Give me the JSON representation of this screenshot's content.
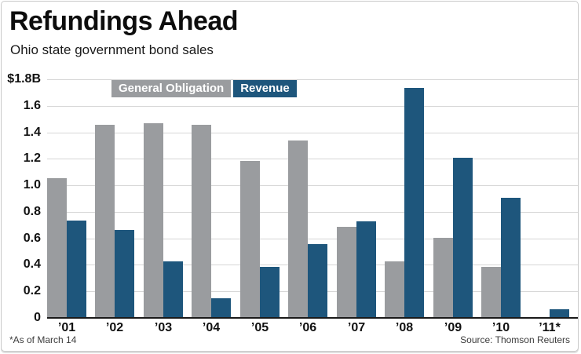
{
  "header": {
    "title": "Refundings Ahead",
    "subtitle": "Ohio state government bond sales"
  },
  "footer": {
    "footnote": "*As of March 14",
    "source": "Source: Thomson Reuters"
  },
  "chart_data": {
    "type": "bar",
    "title": "Refundings Ahead",
    "subtitle": "Ohio state government bond sales",
    "unit": "billions of dollars",
    "categories": [
      "’01",
      "’02",
      "’03",
      "’04",
      "’05",
      "’06",
      "’07",
      "’08",
      "’09",
      "’10",
      "’11*"
    ],
    "series": [
      {
        "name": "General Obligation",
        "color": "#9a9c9f",
        "values": [
          1.05,
          1.45,
          1.46,
          1.45,
          1.18,
          1.33,
          0.68,
          0.42,
          0.6,
          0.38,
          0
        ]
      },
      {
        "name": "Revenue",
        "color": "#1e567c",
        "values": [
          0.73,
          0.66,
          0.42,
          0.14,
          0.38,
          0.55,
          0.72,
          1.73,
          1.2,
          0.9,
          0.06
        ]
      }
    ],
    "y_axis": {
      "ticks": [
        "$1.8B",
        "1.6",
        "1.4",
        "1.2",
        "1.0",
        "0.8",
        "0.6",
        "0.4",
        "0.2",
        "0"
      ],
      "max": 1.8,
      "min": 0,
      "step": 0.2
    },
    "x_axis": {
      "label": ""
    },
    "grid": true,
    "gridline_color": "#d6d6d6",
    "axis_color": "#1a1a1a",
    "legend_position": "top-inside",
    "legend_text_color": "#ffffff"
  }
}
